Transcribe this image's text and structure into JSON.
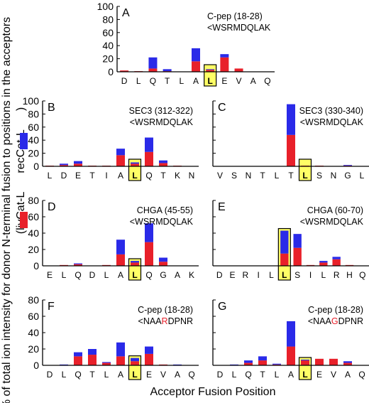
{
  "figure": {
    "ylabel_line1": "% of total ion intensity for donor N-terminal fusion to positions in the acceptors",
    "ylabel_line2": "(livCat-L      recCat-L      )",
    "xlabel": "Acceptor Fusion Position",
    "colors": {
      "red": "#e8202a",
      "blue": "#2a2ae8",
      "highlight": "#ffff66",
      "highlight_border": "#000000",
      "mutation": "#e8202a"
    }
  },
  "chart_data": [
    {
      "panel": "A",
      "type": "bar",
      "stacked": true,
      "title_line1": "C-pep (18-28)",
      "title_line2": "<WSRMDQLAK",
      "categories": [
        "D",
        "L",
        "Q",
        "T",
        "L",
        "A",
        "L",
        "E",
        "V",
        "A",
        "Q"
      ],
      "highlight_index": 6,
      "ylim": [
        0,
        100
      ],
      "yticks": [
        0,
        20,
        40,
        60,
        80,
        100
      ],
      "show_yticks": true,
      "series": [
        {
          "values": [
            2,
            1,
            5,
            1,
            0,
            16,
            3,
            22,
            5,
            0,
            0
          ]
        },
        {
          "values": [
            0,
            0,
            17,
            3,
            0,
            20,
            1,
            5,
            0,
            0,
            0
          ]
        }
      ]
    },
    {
      "panel": "B",
      "type": "bar",
      "stacked": true,
      "title_line1": "SEC3 (312-322)",
      "title_line2": "<WSRMDQLAK",
      "categories": [
        "L",
        "D",
        "E",
        "T",
        "I",
        "A",
        "L",
        "Q",
        "T",
        "K",
        "N"
      ],
      "highlight_index": 6,
      "ylim": [
        0,
        100
      ],
      "yticks": [
        0,
        20,
        40,
        60,
        80,
        100
      ],
      "show_yticks": true,
      "series": [
        {
          "values": [
            1,
            2,
            4,
            1,
            1,
            17,
            4,
            22,
            5,
            1,
            0
          ]
        },
        {
          "values": [
            0,
            2,
            4,
            0,
            0,
            10,
            2,
            22,
            4,
            0,
            0
          ]
        }
      ]
    },
    {
      "panel": "C",
      "type": "bar",
      "stacked": true,
      "title_line1": "SEC3 (330-340)",
      "title_line2": "<WSRMDQLAK",
      "categories": [
        "V",
        "S",
        "N",
        "T",
        "L",
        "T",
        "L",
        "S",
        "N",
        "G",
        "L"
      ],
      "highlight_index": 6,
      "ylim": [
        0,
        100
      ],
      "yticks": [
        0,
        20,
        40,
        60,
        80,
        100
      ],
      "show_yticks": false,
      "series": [
        {
          "values": [
            0,
            0,
            0,
            0,
            0,
            48,
            1,
            1,
            0,
            1,
            0
          ]
        },
        {
          "values": [
            0,
            0,
            0,
            0,
            0,
            47,
            0,
            0,
            0,
            1,
            0
          ]
        }
      ]
    },
    {
      "panel": "D",
      "type": "bar",
      "stacked": true,
      "title_line1": "CHGA (45-55)",
      "title_line2": "<WSRMDQLAK",
      "categories": [
        "E",
        "L",
        "Q",
        "D",
        "L",
        "A",
        "L",
        "Q",
        "G",
        "A",
        "K"
      ],
      "highlight_index": 6,
      "ylim": [
        0,
        80
      ],
      "yticks": [
        0,
        20,
        40,
        60,
        80
      ],
      "show_yticks": true,
      "series": [
        {
          "values": [
            0,
            1,
            2,
            0,
            1,
            14,
            4,
            29,
            5,
            0,
            0
          ]
        },
        {
          "values": [
            0,
            0,
            1,
            0,
            0,
            18,
            2,
            23,
            5,
            0,
            0
          ]
        }
      ]
    },
    {
      "panel": "E",
      "type": "bar",
      "stacked": true,
      "title_line1": "CHGA (60-70)",
      "title_line2": "<WSRMDQLAK",
      "categories": [
        "D",
        "E",
        "R",
        "I",
        "L",
        "L",
        "S",
        "I",
        "L",
        "R",
        "H",
        "Q"
      ],
      "highlight_index": 5,
      "ylim": [
        0,
        80
      ],
      "yticks": [
        0,
        20,
        40,
        60,
        80
      ],
      "show_yticks": false,
      "series": [
        {
          "values": [
            0,
            0,
            0,
            0,
            0,
            15,
            22,
            1,
            4,
            8,
            1,
            0
          ]
        },
        {
          "values": [
            0,
            0,
            0,
            0,
            0,
            28,
            17,
            0,
            2,
            3,
            0,
            0
          ]
        }
      ]
    },
    {
      "panel": "F",
      "type": "bar",
      "stacked": true,
      "title_line1": "C-pep (18-28)",
      "title_line2_prefix": "<NAA",
      "title_line2_mut": "R",
      "title_line2_suffix": "DPNR",
      "categories": [
        "D",
        "L",
        "Q",
        "T",
        "L",
        "A",
        "L",
        "E",
        "V",
        "A",
        "Q"
      ],
      "highlight_index": 6,
      "ylim": [
        0,
        80
      ],
      "yticks": [
        0,
        20,
        40,
        60,
        80
      ],
      "show_yticks": true,
      "series": [
        {
          "values": [
            0,
            0,
            11,
            13,
            3,
            11,
            5,
            14,
            1,
            0,
            0
          ]
        },
        {
          "values": [
            0,
            1,
            5,
            7,
            1,
            17,
            4,
            9,
            0,
            1,
            0
          ]
        }
      ]
    },
    {
      "panel": "G",
      "type": "bar",
      "stacked": true,
      "title_line1": "C-pep (18-28)",
      "title_line2_prefix": "<NAA",
      "title_line2_mut": "G",
      "title_line2_suffix": "DPNR",
      "categories": [
        "D",
        "L",
        "Q",
        "T",
        "L",
        "A",
        "L",
        "E",
        "V",
        "A",
        "Q"
      ],
      "highlight_index": 6,
      "ylim": [
        0,
        80
      ],
      "yticks": [
        0,
        20,
        40,
        60,
        80
      ],
      "show_yticks": false,
      "series": [
        {
          "values": [
            0,
            0,
            3,
            6,
            1,
            23,
            6,
            8,
            8,
            3,
            0
          ]
        },
        {
          "values": [
            0,
            1,
            3,
            5,
            1,
            31,
            1,
            0,
            0,
            2,
            0
          ]
        }
      ]
    }
  ]
}
